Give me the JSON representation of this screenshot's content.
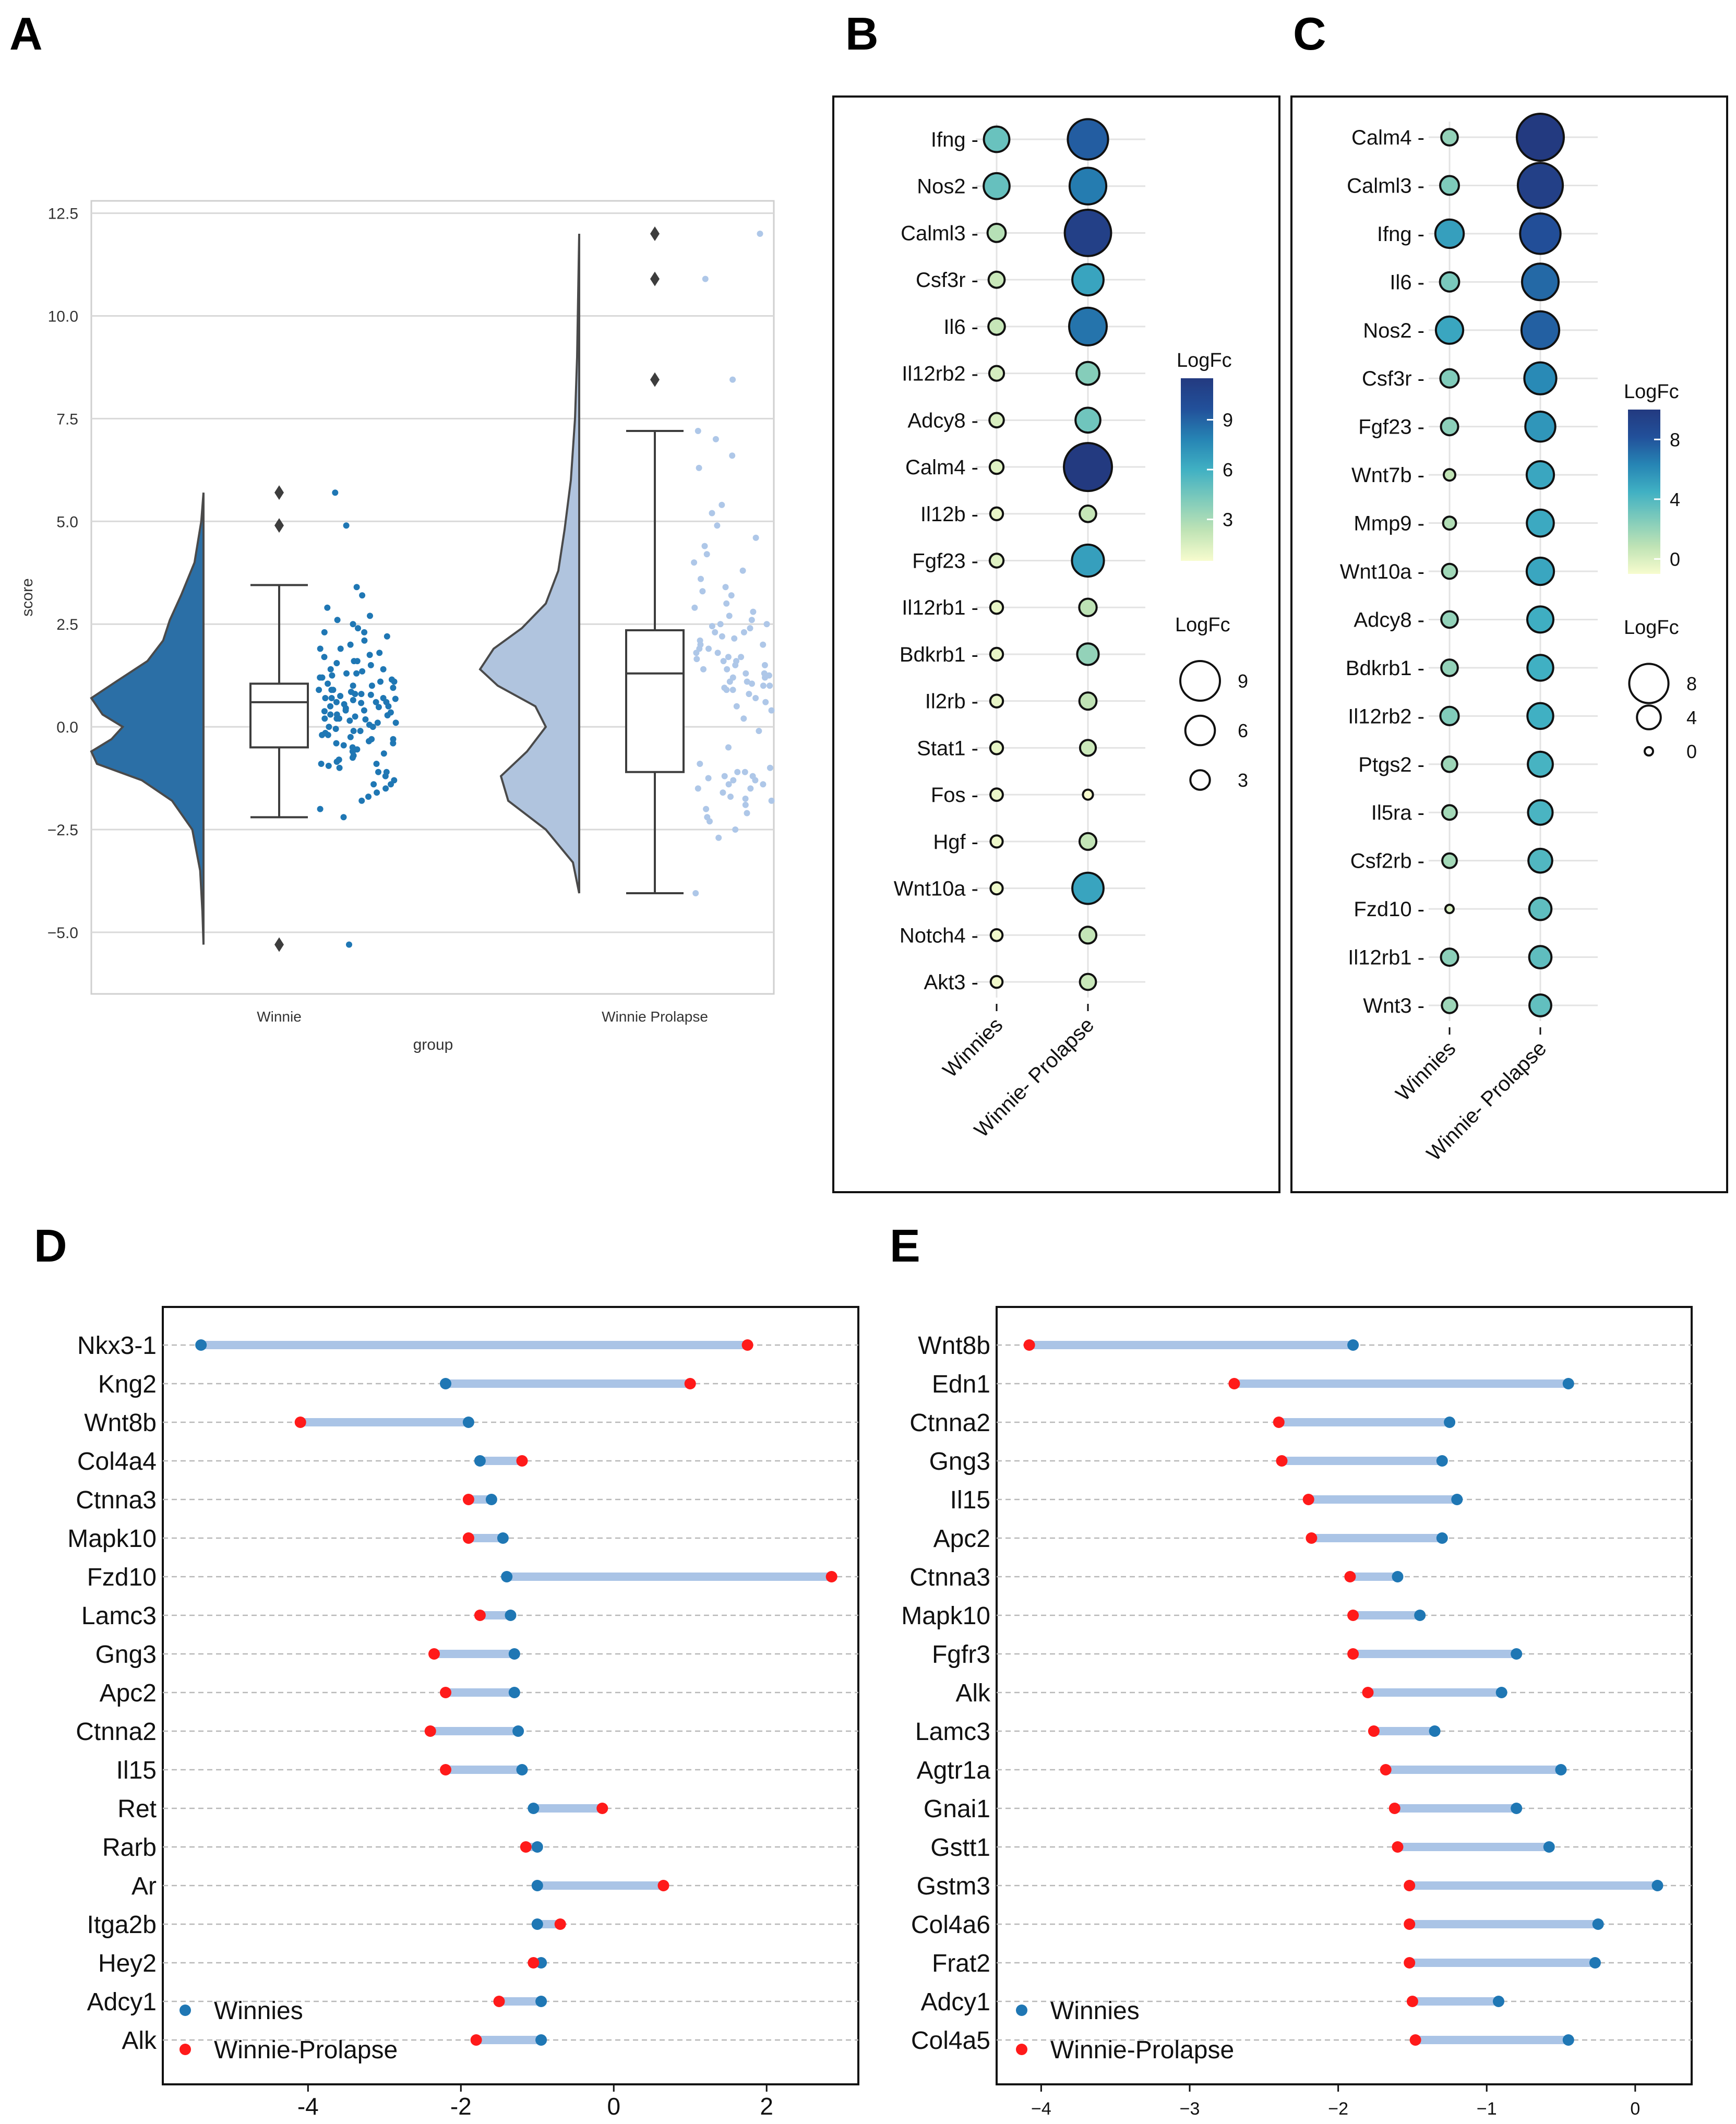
{
  "figure": {
    "panel_labels": [
      "A",
      "B",
      "C",
      "D",
      "E"
    ]
  },
  "chart_data": [
    {
      "id": "A",
      "type": "raincloud",
      "xlabel": "group",
      "ylabel": "score",
      "ylim": [
        -6.5,
        12.8
      ],
      "yticks": [
        -5.0,
        -2.5,
        0.0,
        2.5,
        5.0,
        7.5,
        10.0,
        12.5
      ],
      "ytick_labels": [
        "−5.0",
        "−2.5",
        "0.0",
        "2.5",
        "5.0",
        "7.5",
        "10.0",
        "12.5"
      ],
      "groups": [
        {
          "name": "Winnie",
          "color": "#2b6fa6",
          "point_color": "#1f77b4",
          "box": {
            "min": -2.2,
            "q1": -0.5,
            "median": 0.6,
            "q3": 1.05,
            "max": 3.45
          },
          "outliers": [
            5.7,
            4.9,
            -5.3
          ],
          "violin_range": [
            -5.3,
            5.7
          ],
          "violin_profile": [
            [
              -5.3,
              0.0
            ],
            [
              -4.5,
              0.01
            ],
            [
              -3.5,
              0.03
            ],
            [
              -2.5,
              0.1
            ],
            [
              -1.8,
              0.28
            ],
            [
              -1.3,
              0.55
            ],
            [
              -0.9,
              0.95
            ],
            [
              -0.6,
              1.0
            ],
            [
              -0.3,
              0.82
            ],
            [
              0.0,
              0.72
            ],
            [
              0.3,
              0.9
            ],
            [
              0.7,
              1.0
            ],
            [
              1.1,
              0.78
            ],
            [
              1.6,
              0.5
            ],
            [
              2.1,
              0.36
            ],
            [
              2.6,
              0.3
            ],
            [
              3.2,
              0.2
            ],
            [
              4.0,
              0.08
            ],
            [
              5.0,
              0.02
            ],
            [
              5.7,
              0.0
            ]
          ],
          "points": [
            3.4,
            3.2,
            2.9,
            2.6,
            2.5,
            2.4,
            2.3,
            2.2,
            2.1,
            2.0,
            1.9,
            1.8,
            1.75,
            1.7,
            1.6,
            1.55,
            1.5,
            1.4,
            1.35,
            1.3,
            1.25,
            1.2,
            1.15,
            1.1,
            1.05,
            1.0,
            0.95,
            0.9,
            0.85,
            0.8,
            0.78,
            0.75,
            0.7,
            0.68,
            0.65,
            0.6,
            0.58,
            0.55,
            0.5,
            0.48,
            0.45,
            0.4,
            0.38,
            0.35,
            0.3,
            0.28,
            0.25,
            0.2,
            0.18,
            0.15,
            0.1,
            0.05,
            0.0,
            -0.05,
            -0.1,
            -0.15,
            -0.2,
            -0.25,
            -0.3,
            -0.35,
            -0.4,
            -0.45,
            -0.5,
            -0.55,
            -0.6,
            -0.65,
            -0.7,
            -0.75,
            -0.8,
            -0.85,
            -0.9,
            -0.95,
            -1.0,
            -1.1,
            -1.2,
            -1.3,
            -1.4,
            -1.5,
            -1.6,
            -1.7,
            -1.8,
            -2.0,
            -2.2,
            4.9,
            5.7,
            -5.3,
            1.0,
            0.6,
            0.2,
            -0.3,
            0.9,
            1.3,
            0.4,
            -0.6,
            0.7,
            0.1,
            1.6,
            -1.1,
            2.3,
            0.8,
            -0.2,
            1.1,
            0.5,
            -0.8,
            1.9,
            0.3,
            -1.4,
            0.0,
            2.7,
            0.6,
            -0.4,
            1.4,
            0.9,
            -0.9,
            0.2,
            1.2,
            -0.1,
            0.7
          ]
        },
        {
          "name": "Winnie Prolapse",
          "color": "#b0c4de",
          "point_color": "#aec7e8",
          "box": {
            "min": -4.05,
            "q1": -1.1,
            "median": 1.3,
            "q3": 2.35,
            "max": 7.2
          },
          "outliers": [
            12.0,
            10.9,
            8.45
          ],
          "violin_range": [
            -4.05,
            12.0
          ],
          "violin_profile": [
            [
              -4.05,
              0.0
            ],
            [
              -3.3,
              0.06
            ],
            [
              -2.5,
              0.32
            ],
            [
              -1.8,
              0.68
            ],
            [
              -1.2,
              0.75
            ],
            [
              -0.6,
              0.5
            ],
            [
              0.0,
              0.32
            ],
            [
              0.5,
              0.42
            ],
            [
              1.0,
              0.78
            ],
            [
              1.4,
              0.95
            ],
            [
              1.9,
              0.82
            ],
            [
              2.4,
              0.55
            ],
            [
              3.0,
              0.32
            ],
            [
              3.8,
              0.2
            ],
            [
              4.8,
              0.14
            ],
            [
              6.0,
              0.08
            ],
            [
              7.5,
              0.04
            ],
            [
              9.0,
              0.02
            ],
            [
              10.5,
              0.01
            ],
            [
              12.0,
              0.0
            ]
          ],
          "points": [
            12.0,
            10.9,
            8.45,
            7.2,
            7.0,
            6.6,
            6.3,
            5.4,
            5.2,
            4.9,
            4.6,
            4.4,
            4.2,
            4.0,
            3.8,
            3.6,
            3.4,
            3.3,
            3.2,
            3.0,
            2.9,
            2.8,
            2.7,
            2.6,
            2.5,
            2.5,
            2.4,
            2.3,
            2.3,
            2.2,
            2.1,
            2.0,
            2.0,
            1.9,
            1.9,
            1.8,
            1.8,
            1.7,
            1.7,
            1.6,
            1.6,
            1.5,
            1.5,
            1.4,
            1.4,
            1.3,
            1.3,
            1.2,
            1.2,
            1.1,
            1.1,
            1.0,
            1.0,
            0.9,
            0.9,
            0.8,
            0.7,
            0.6,
            0.5,
            0.4,
            0.2,
            -0.1,
            -0.5,
            -0.9,
            -1.0,
            -1.1,
            -1.1,
            -1.2,
            -1.2,
            -1.3,
            -1.3,
            -1.4,
            -1.4,
            -1.5,
            -1.5,
            -1.6,
            -1.7,
            -1.8,
            -1.9,
            -2.0,
            -2.1,
            -2.2,
            -2.3,
            -2.5,
            -2.7,
            -4.05,
            1.25,
            2.15,
            1.65,
            0.95,
            -1.25,
            -1.75,
            2.45,
            1.05
          ]
        }
      ]
    },
    {
      "id": "B",
      "type": "dotplot",
      "genes": [
        "Ifng",
        "Nos2",
        "Calml3",
        "Csf3r",
        "Il6",
        "Il12rb2",
        "Adcy8",
        "Calm4",
        "Il12b",
        "Fgf23",
        "Il12rb1",
        "Bdkrb1",
        "Il2rb",
        "Stat1",
        "Fos",
        "Hgf",
        "Wnt10a",
        "Notch4",
        "Akt3"
      ],
      "groups": [
        "Winnies",
        "Winnie- Prolapse"
      ],
      "logfc": [
        [
          4.8,
          9.2
        ],
        [
          4.9,
          8.1
        ],
        [
          2.6,
          11.0
        ],
        [
          2.0,
          6.5
        ],
        [
          2.1,
          8.4
        ],
        [
          1.6,
          4.0
        ],
        [
          1.5,
          4.6
        ],
        [
          1.3,
          11.5
        ],
        [
          1.0,
          2.1
        ],
        [
          1.3,
          6.7
        ],
        [
          1.0,
          2.4
        ],
        [
          1.0,
          3.6
        ],
        [
          1.0,
          2.3
        ],
        [
          1.0,
          1.9
        ],
        [
          0.9,
          0.2
        ],
        [
          0.8,
          2.2
        ],
        [
          0.8,
          6.5
        ],
        [
          0.7,
          2.2
        ],
        [
          0.7,
          2.0
        ]
      ],
      "colorbar": {
        "title": "LogFc",
        "ticks": [
          3,
          6,
          9
        ],
        "tick_labels": [
          "3",
          "6",
          "9"
        ],
        "range": [
          0.5,
          11.5
        ]
      },
      "size_legend": {
        "title": "LogFc",
        "values": [
          9,
          6,
          3
        ],
        "labels": [
          "9",
          "6",
          "3"
        ]
      }
    },
    {
      "id": "C",
      "type": "dotplot",
      "genes": [
        "Calm4",
        "Calml3",
        "Ifng",
        "Il6",
        "Nos2",
        "Csf3r",
        "Fgf23",
        "Wnt7b",
        "Mmp9",
        "Wnt10a",
        "Adcy8",
        "Bdkrb1",
        "Il12rb2",
        "Ptgs2",
        "Il5ra",
        "Csf2rb",
        "Fzd10",
        "Il12rb1",
        "Wnt3"
      ],
      "groups": [
        "Winnies",
        "Winnie- Prolapse"
      ],
      "logfc": [
        [
          2.1,
          10.0
        ],
        [
          2.7,
          9.5
        ],
        [
          5.2,
          8.3
        ],
        [
          2.8,
          7.3
        ],
        [
          4.9,
          7.6
        ],
        [
          2.6,
          6.1
        ],
        [
          2.3,
          5.6
        ],
        [
          0.8,
          4.9
        ],
        [
          1.2,
          4.8
        ],
        [
          1.7,
          4.9
        ],
        [
          2.1,
          4.6
        ],
        [
          2.1,
          4.5
        ],
        [
          2.6,
          4.5
        ],
        [
          1.8,
          4.3
        ],
        [
          1.6,
          4.2
        ],
        [
          1.6,
          4.0
        ],
        [
          0.0,
          3.6
        ],
        [
          2.3,
          3.6
        ],
        [
          1.8,
          3.5
        ]
      ],
      "colorbar": {
        "title": "LogFc",
        "ticks": [
          0,
          4,
          8
        ],
        "tick_labels": [
          "0",
          "4",
          "8"
        ],
        "range": [
          -1.0,
          10.0
        ]
      },
      "size_legend": {
        "title": "LogFc",
        "values": [
          8,
          4,
          0
        ],
        "labels": [
          "8",
          "4",
          "0"
        ]
      }
    },
    {
      "id": "D",
      "type": "dumbbell",
      "genes": [
        "Nkx3-1",
        "Kng2",
        "Wnt8b",
        "Col4a4",
        "Ctnna3",
        "Mapk10",
        "Fzd10",
        "Lamc3",
        "Gng3",
        "Apc2",
        "Ctnna2",
        "Il15",
        "Ret",
        "Rarb",
        "Ar",
        "Itga2b",
        "Hey2",
        "Adcy1",
        "Alk"
      ],
      "series": [
        {
          "name": "Winnies",
          "color": "#1f77b4",
          "values": [
            -5.4,
            -2.2,
            -1.9,
            -1.75,
            -1.6,
            -1.45,
            -1.4,
            -1.35,
            -1.3,
            -1.3,
            -1.25,
            -1.2,
            -1.05,
            -1.0,
            -1.0,
            -1.0,
            -0.95,
            -0.95,
            -0.95
          ]
        },
        {
          "name": "Winnie-Prolapse",
          "color": "#ff1a1a",
          "values": [
            1.75,
            1.0,
            -4.1,
            -1.2,
            -1.9,
            -1.9,
            2.85,
            -1.75,
            -2.35,
            -2.2,
            -2.4,
            -2.2,
            -0.15,
            -1.15,
            0.65,
            -0.7,
            -1.05,
            -1.5,
            -1.8
          ]
        }
      ],
      "xlim": [
        -5.9,
        3.2
      ],
      "xticks": [
        -4,
        -2,
        0,
        2
      ],
      "xtick_labels": [
        "-4",
        "-2",
        "0",
        "2"
      ]
    },
    {
      "id": "E",
      "type": "dumbbell",
      "genes": [
        "Wnt8b",
        "Edn1",
        "Ctnna2",
        "Gng3",
        "Il15",
        "Apc2",
        "Ctnna3",
        "Mapk10",
        "Fgfr3",
        "Alk",
        "Lamc3",
        "Agtr1a",
        "Gnai1",
        "Gstt1",
        "Gstm3",
        "Col4a6",
        "Frat2",
        "Adcy1",
        "Col4a5"
      ],
      "series": [
        {
          "name": "Winnies",
          "color": "#1f77b4",
          "values": [
            -1.9,
            -0.45,
            -1.25,
            -1.3,
            -1.2,
            -1.3,
            -1.6,
            -1.45,
            -0.8,
            -0.9,
            -1.35,
            -0.5,
            -0.8,
            -0.58,
            0.15,
            -0.25,
            -0.27,
            -0.92,
            -0.45
          ]
        },
        {
          "name": "Winnie-Prolapse",
          "color": "#ff1a1a",
          "values": [
            -4.08,
            -2.7,
            -2.4,
            -2.38,
            -2.2,
            -2.18,
            -1.92,
            -1.9,
            -1.9,
            -1.8,
            -1.76,
            -1.68,
            -1.62,
            -1.6,
            -1.52,
            -1.52,
            -1.52,
            -1.5,
            -1.48
          ]
        }
      ],
      "xlim": [
        -4.3,
        0.38
      ],
      "xticks": [
        -4,
        -3,
        -2,
        -1,
        0
      ],
      "xtick_labels": [
        "−4",
        "−3",
        "−2",
        "−1",
        "0"
      ]
    }
  ]
}
